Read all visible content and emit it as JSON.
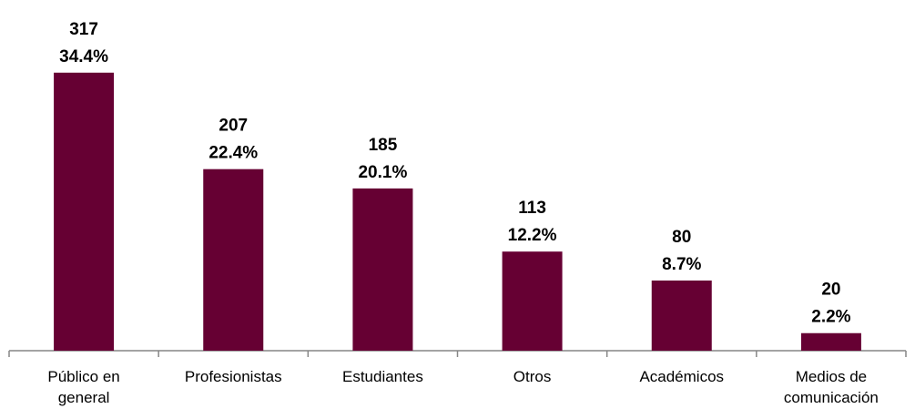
{
  "chart_data": {
    "type": "bar",
    "categories": [
      "Público en general",
      "Profesionistas",
      "Estudiantes",
      "Otros",
      "Académicos",
      "Medios de comunicación"
    ],
    "values": [
      317,
      207,
      185,
      113,
      80,
      20
    ],
    "share_labels": [
      "34.4%",
      "22.4%",
      "20.1%",
      "12.2%",
      "8.7%",
      "2.2%"
    ],
    "color": "#660033",
    "ylim": [
      0,
      350
    ],
    "grid": false
  }
}
